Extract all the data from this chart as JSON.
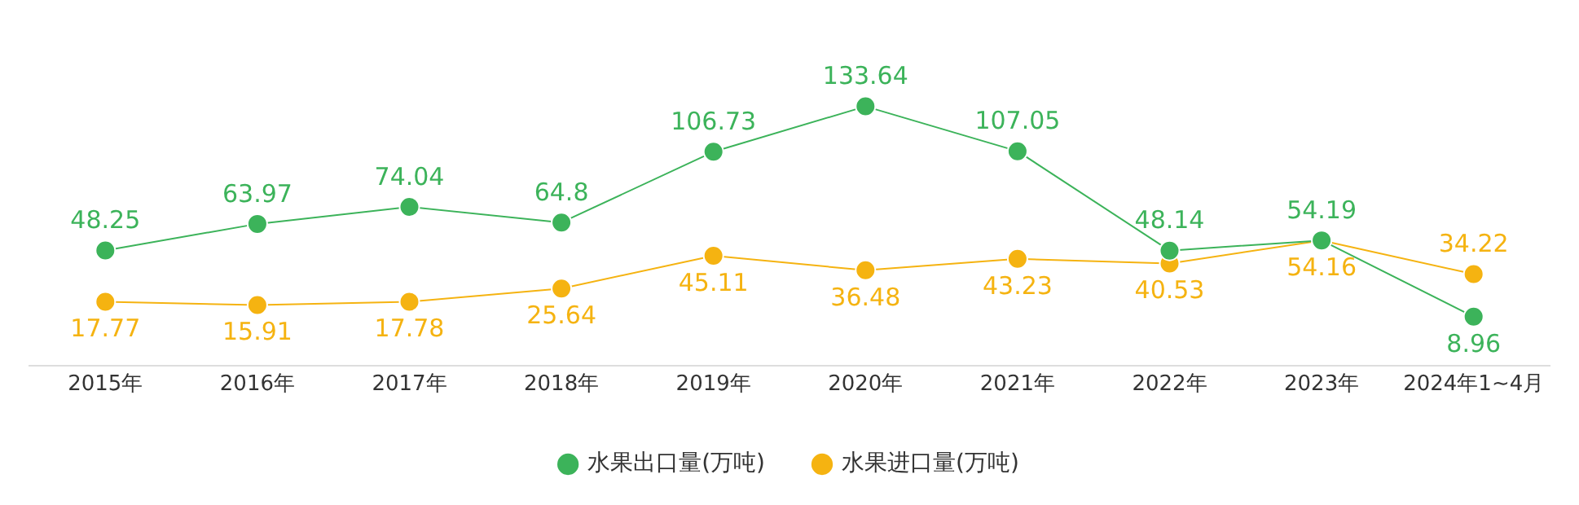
{
  "chart_data": {
    "type": "line",
    "categories": [
      "2015年",
      "2016年",
      "2017年",
      "2018年",
      "2019年",
      "2020年",
      "2021年",
      "2022年",
      "2023年",
      "2024年1~4月"
    ],
    "series": [
      {
        "name": "水果出口量(万吨)",
        "color": "#3cb35a",
        "values": [
          48.25,
          63.97,
          74.04,
          64.8,
          106.73,
          133.64,
          107.05,
          48.14,
          54.19,
          8.96
        ]
      },
      {
        "name": "水果进口量(万吨)",
        "color": "#f5b311",
        "values": [
          17.77,
          15.91,
          17.78,
          25.64,
          45.11,
          36.48,
          43.23,
          40.53,
          54.16,
          34.22
        ]
      }
    ],
    "data_labels": true,
    "marker": "circle",
    "line_style": "solid",
    "grid": false,
    "legend": "bottom"
  }
}
